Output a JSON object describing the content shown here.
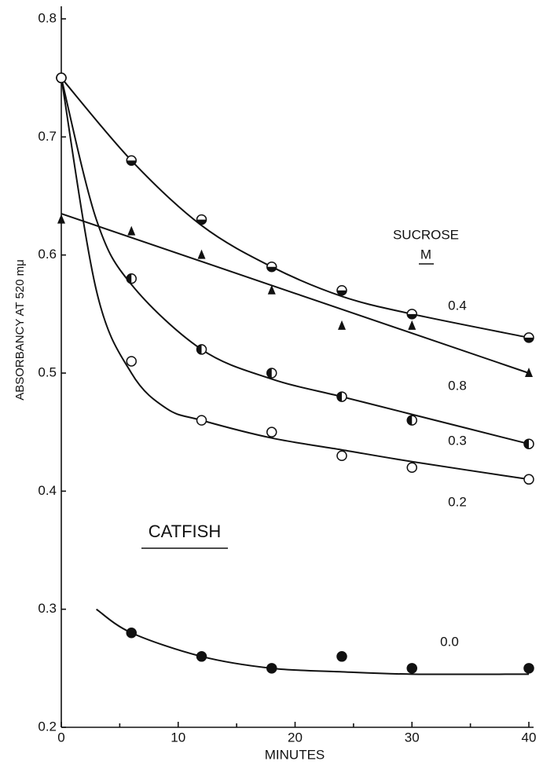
{
  "chart_data": {
    "type": "scatter",
    "x_label": "MINUTES",
    "y_label": "ABSORBANCY AT 520 mμ",
    "annotations": [
      "CATFISH",
      "SUCROSE",
      "M"
    ],
    "xlim": [
      0,
      40
    ],
    "xticks": [
      0,
      10,
      20,
      30,
      40
    ],
    "xminorticks": [
      5,
      15,
      25,
      35
    ],
    "ylim": [
      0.2,
      0.8
    ],
    "yticks": [
      0.2,
      0.3,
      0.4,
      0.5,
      0.6,
      0.7,
      0.8
    ],
    "color": "#111111",
    "series": [
      {
        "name": "0.4",
        "marker": "half-h",
        "x": [
          0,
          6,
          12,
          18,
          24,
          30,
          40
        ],
        "values": [
          0.75,
          0.68,
          0.63,
          0.59,
          0.57,
          0.55,
          0.53
        ],
        "fit": {
          "x": [
            0,
            6,
            12,
            18,
            24,
            30,
            40
          ],
          "values": [
            0.75,
            0.68,
            0.625,
            0.59,
            0.565,
            0.55,
            0.53
          ]
        }
      },
      {
        "name": "0.8",
        "marker": "triangle",
        "x": [
          0,
          6,
          12,
          18,
          24,
          30,
          40
        ],
        "values": [
          0.63,
          0.62,
          0.6,
          0.57,
          0.54,
          0.54,
          0.5
        ],
        "fit": {
          "x": [
            0,
            40
          ],
          "values": [
            0.635,
            0.5
          ]
        }
      },
      {
        "name": "0.3",
        "marker": "half-v",
        "x": [
          0,
          6,
          12,
          18,
          24,
          30,
          40
        ],
        "values": [
          0.75,
          0.58,
          0.52,
          0.5,
          0.48,
          0.46,
          0.44
        ],
        "fit": {
          "x": [
            0,
            3,
            6,
            12,
            18,
            24,
            30,
            40
          ],
          "values": [
            0.75,
            0.63,
            0.575,
            0.52,
            0.495,
            0.48,
            0.465,
            0.44
          ]
        }
      },
      {
        "name": "0.2",
        "marker": "open",
        "x": [
          0,
          6,
          12,
          18,
          24,
          30,
          40
        ],
        "values": [
          0.75,
          0.51,
          0.46,
          0.45,
          0.43,
          0.42,
          0.41
        ],
        "fit": {
          "x": [
            0,
            3,
            6,
            9,
            12,
            18,
            24,
            30,
            40
          ],
          "values": [
            0.75,
            0.57,
            0.5,
            0.47,
            0.46,
            0.445,
            0.435,
            0.425,
            0.41
          ]
        }
      },
      {
        "name": "0.0",
        "marker": "filled",
        "x": [
          6,
          12,
          18,
          24,
          30,
          40
        ],
        "values": [
          0.28,
          0.26,
          0.25,
          0.26,
          0.25,
          0.25
        ],
        "fit": {
          "x": [
            3,
            6,
            12,
            18,
            24,
            30,
            40
          ],
          "values": [
            0.3,
            0.28,
            0.26,
            0.25,
            0.247,
            0.245,
            0.245
          ]
        }
      }
    ]
  }
}
